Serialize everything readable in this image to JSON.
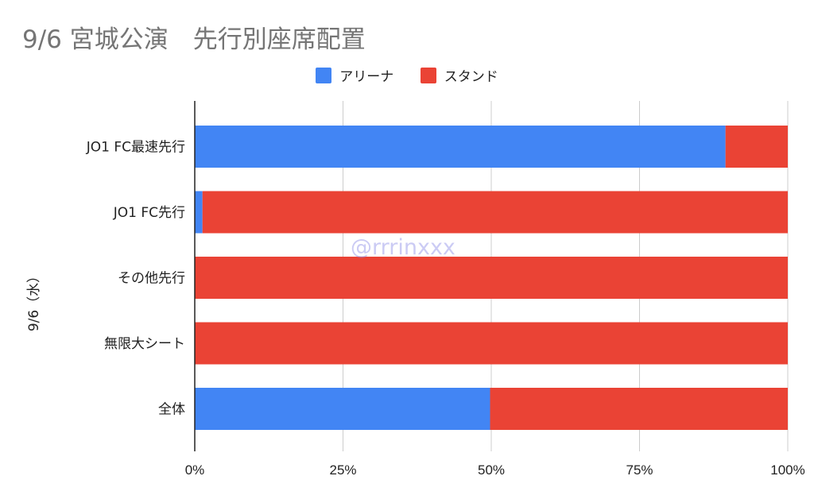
{
  "title": "9/6 宮城公演　先行別座席配置",
  "watermark": "@rrrinxxx",
  "colors": {
    "arena": "#4285f4",
    "stand": "#ea4335",
    "grid": "#cccccc",
    "axis": "#222222",
    "text": "#222222"
  },
  "chart_data": {
    "type": "bar",
    "orientation": "horizontal",
    "stacked": "percent",
    "group_label": "9/6（水）",
    "categories": [
      "JO1 FC最速先行",
      "JO1 FC先行",
      "その他先行",
      "無限大シート",
      "全体"
    ],
    "series": [
      {
        "name": "アリーナ",
        "values": [
          89.5,
          1.3,
          0,
          0,
          49.8
        ]
      },
      {
        "name": "スタンド",
        "values": [
          10.5,
          98.7,
          100,
          100,
          50.2
        ]
      }
    ],
    "xticks": [
      "0%",
      "25%",
      "50%",
      "75%",
      "100%"
    ],
    "xlim": [
      0,
      100
    ],
    "grid": true,
    "legend_position": "top-center"
  }
}
